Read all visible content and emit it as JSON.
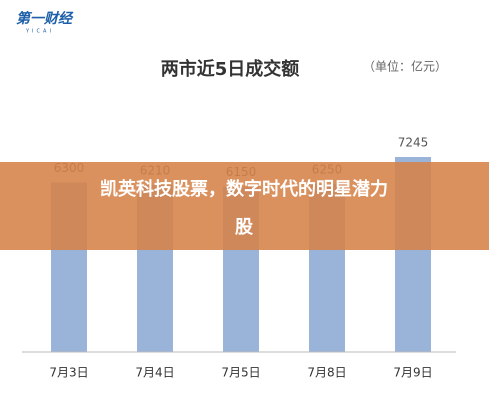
{
  "logo": {
    "text": "第一财经",
    "sub": "YICAI"
  },
  "chart_data": {
    "type": "bar",
    "title": "两市近5日成交额",
    "subtitle": "（单位：亿元）",
    "categories": [
      "7月3日",
      "7月4日",
      "7月5日",
      "7月8日",
      "7月9日"
    ],
    "values": [
      6300,
      6210,
      6150,
      6250,
      7245
    ],
    "color": "#9ab3d8",
    "ylim": [
      0,
      8000
    ],
    "grid": false
  },
  "banner": {
    "text": "凯英科技股票，数字时代的明星潜力股"
  }
}
